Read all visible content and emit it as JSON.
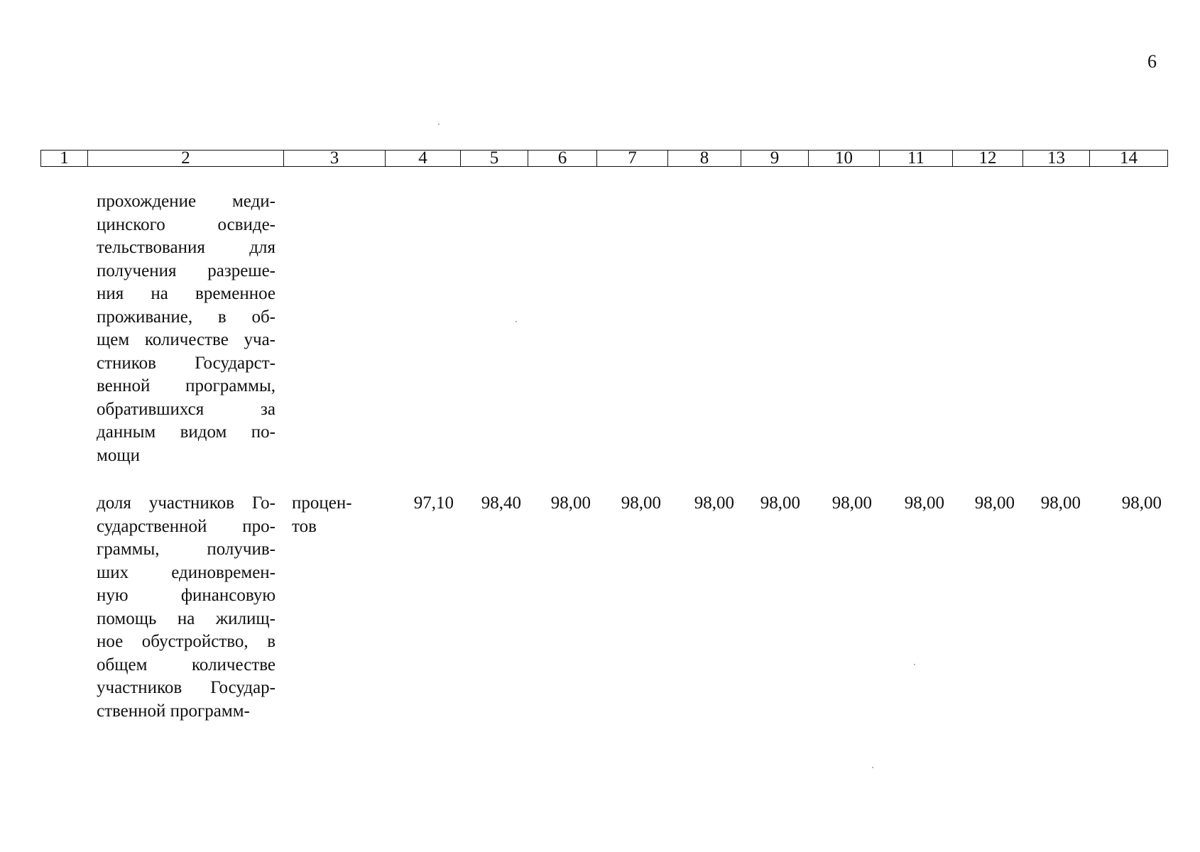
{
  "page_number": "6",
  "header_columns": [
    "1",
    "2",
    "3",
    "4",
    "5",
    "6",
    "7",
    "8",
    "9",
    "10",
    "11",
    "12",
    "13",
    "14"
  ],
  "rows": [
    {
      "description_lines": [
        "прохождение меди-",
        "цинского освиде-",
        "тельствования для",
        "получения разреше-",
        "ния на временное",
        "проживание, в об-",
        "щем количестве уча-",
        "стников Государст-",
        "венной программы,",
        "обратившихся за",
        "данным видом по-",
        "мощи"
      ],
      "unit_lines": [],
      "values": []
    },
    {
      "description_lines": [
        "доля участников Го-",
        "сударственной про-",
        "граммы, получив-",
        "ших единовремен-",
        "ную финансовую",
        "помощь на жилищ-",
        "ное обустройство, в",
        "общем количестве",
        "участников Государ-",
        "ственной программ-"
      ],
      "unit_lines": [
        "процен-",
        "тов"
      ],
      "values": [
        "97,10",
        "98,40",
        "98,00",
        "98,00",
        "98,00",
        "98,00",
        "98,00",
        "98,00",
        "98,00",
        "98,00",
        "98,00"
      ]
    }
  ]
}
